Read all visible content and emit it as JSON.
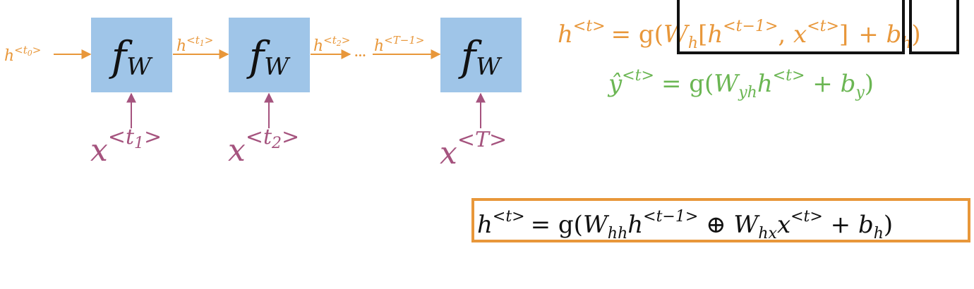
{
  "colors": {
    "orange": "#E8973A",
    "purple": "#A5537E",
    "green": "#6BB653",
    "block": "#9FC5E8",
    "black": "#111111",
    "box_border": "#E8973A"
  },
  "blocks": [
    {
      "label": "f",
      "sub": "W"
    },
    {
      "label": "f",
      "sub": "W"
    },
    {
      "label": "f",
      "sub": "W"
    }
  ],
  "inputs": [
    {
      "base": "x",
      "sup": "<t",
      "supsub": "1",
      "tail": ">"
    },
    {
      "base": "x",
      "sup": "<t",
      "supsub": "2",
      "tail": ">"
    },
    {
      "base": "x",
      "sup": "<T>",
      "supsub": "",
      "tail": ""
    }
  ],
  "hidden_labels": [
    {
      "base": "h",
      "sup": "<t",
      "supsub": "0",
      "tail": ">"
    },
    {
      "base": "h",
      "sup": "<t",
      "supsub": "1",
      "tail": ">"
    },
    {
      "base": "h",
      "sup": "<t",
      "supsub": "2",
      "tail": ">"
    },
    {
      "base": "h",
      "sup": "<T−1>",
      "supsub": "",
      "tail": ""
    }
  ],
  "ellipsis": "...",
  "equations": {
    "hidden": {
      "lhs_base": "h",
      "lhs_sup": "<t>",
      "eq": "= g(",
      "w": "W",
      "w_sub": "h",
      "bracket_open": "[",
      "h_base": "h",
      "h_sup": "<t−1>",
      "comma": ", ",
      "x_base": "x",
      "x_sup": "<t>",
      "bracket_close": "]",
      "plus": "+ ",
      "b": "b",
      "b_sub": "h",
      "close": ")"
    },
    "output": {
      "lhs_base": "ŷ",
      "lhs_sup": "<t>",
      "eq": "= g(",
      "w": "W",
      "w_sub": "yh",
      "h_base": "h",
      "h_sup": "<t>",
      "plus": " + ",
      "b": "b",
      "b_sub": "y",
      "close": ")"
    },
    "boxed": {
      "lhs_base": "h",
      "lhs_sup": "<t>",
      "eq": "= g(",
      "w1": "W",
      "w1_sub": "hh",
      "h_base": "h",
      "h_sup": "<t−1>",
      "oplus": " ⊕ ",
      "w2": "W",
      "w2_sub": "hx",
      "x_base": "x",
      "x_sup": "<t>",
      "plus": " + ",
      "b": "b",
      "b_sub": "h",
      "close": ")"
    }
  }
}
